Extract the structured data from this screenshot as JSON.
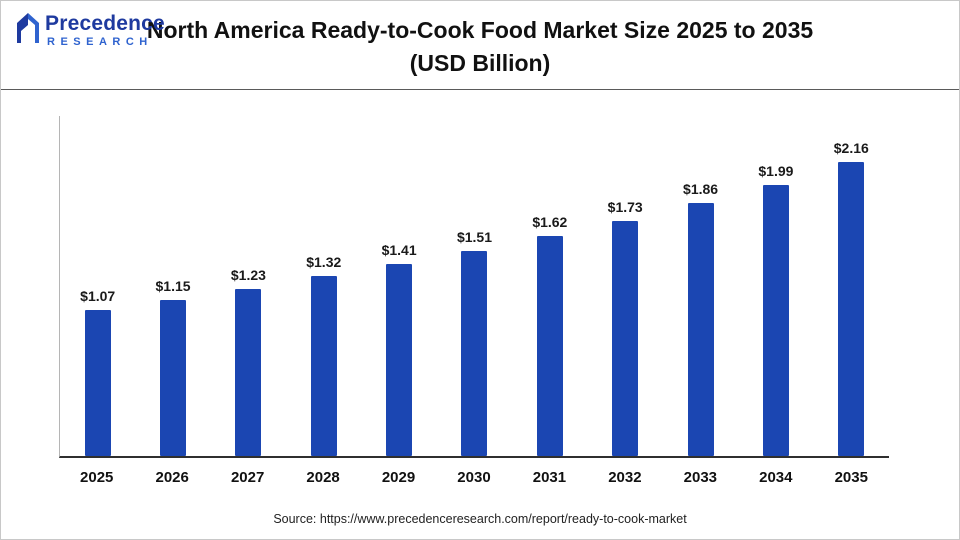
{
  "header": {
    "title_line1": "North America Ready-to-Cook Food Market Size 2025 to 2035",
    "title_line2": "(USD Billion)",
    "logo": {
      "name": "Precedence",
      "subname": "RESEARCH"
    }
  },
  "footer": {
    "source": "Source: https://www.precedenceresearch.com/report/ready-to-cook-market"
  },
  "colors": {
    "bar": "#1B46B2",
    "logo_dark_blue": "#1e3a9f",
    "logo_light_blue": "#2f63cf",
    "axis": "#2f2f2f"
  },
  "chart_data": {
    "type": "bar",
    "title": "North America Ready-to-Cook Food Market Size 2025 to 2035 (USD Billion)",
    "xlabel": "",
    "ylabel": "",
    "categories": [
      "2025",
      "2026",
      "2027",
      "2028",
      "2029",
      "2030",
      "2031",
      "2032",
      "2033",
      "2034",
      "2035"
    ],
    "values": [
      1.07,
      1.15,
      1.23,
      1.32,
      1.41,
      1.51,
      1.62,
      1.73,
      1.86,
      1.99,
      2.16
    ],
    "value_labels": [
      "$1.07",
      "$1.15",
      "$1.23",
      "$1.32",
      "$1.41",
      "$1.51",
      "$1.62",
      "$1.73",
      "$1.86",
      "$1.99",
      "$2.16"
    ],
    "ylim": [
      0,
      2.5
    ],
    "grid": false,
    "legend": false,
    "bar_color": "#1B46B2"
  }
}
